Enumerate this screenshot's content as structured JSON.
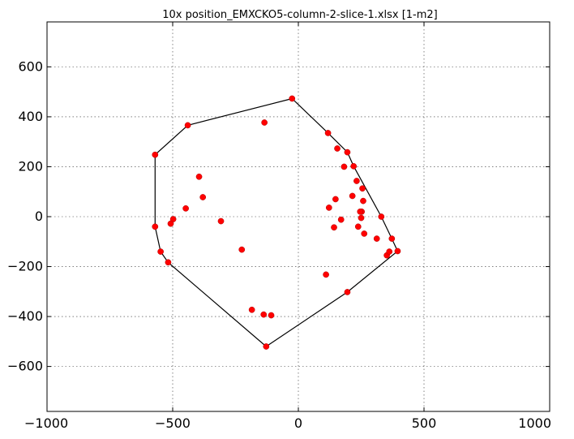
{
  "chart_data": {
    "type": "scatter",
    "title": "10x position_EMXCKO5-column-2-slice-1.xlsx   [1-m2]",
    "xlabel": "",
    "ylabel": "",
    "xlim": [
      -1000,
      1000
    ],
    "ylim": [
      -780,
      780
    ],
    "grid": true,
    "x_ticks": [
      -1000,
      -500,
      0,
      500,
      1000
    ],
    "y_ticks": [
      -600,
      -400,
      -200,
      0,
      200,
      400,
      600
    ],
    "x_tick_labels": [
      "−1000",
      "−500",
      "0",
      "500",
      "1000"
    ],
    "y_tick_labels": [
      "−600",
      "−400",
      "−200",
      "0",
      "200",
      "400",
      "600"
    ],
    "points": [
      [
        -25,
        473
      ],
      [
        -440,
        366
      ],
      [
        -570,
        248
      ],
      [
        -570,
        -40
      ],
      [
        -548,
        -140
      ],
      [
        -518,
        -183
      ],
      [
        -128,
        -520
      ],
      [
        195,
        -302
      ],
      [
        395,
        -138
      ],
      [
        372,
        -88
      ],
      [
        330,
        0
      ],
      [
        220,
        202
      ],
      [
        195,
        258
      ],
      [
        118,
        335
      ],
      [
        -135,
        377
      ],
      [
        -395,
        160
      ],
      [
        -380,
        78
      ],
      [
        -448,
        33
      ],
      [
        -498,
        -10
      ],
      [
        -508,
        -28
      ],
      [
        -308,
        -18
      ],
      [
        -225,
        -132
      ],
      [
        -185,
        -373
      ],
      [
        -138,
        -392
      ],
      [
        -108,
        -395
      ],
      [
        110,
        -232
      ],
      [
        352,
        -155
      ],
      [
        362,
        -140
      ],
      [
        312,
        -88
      ],
      [
        262,
        -68
      ],
      [
        238,
        -40
      ],
      [
        250,
        -5
      ],
      [
        252,
        20
      ],
      [
        246,
        20
      ],
      [
        258,
        63
      ],
      [
        255,
        113
      ],
      [
        232,
        143
      ],
      [
        182,
        200
      ],
      [
        155,
        273
      ],
      [
        148,
        70
      ],
      [
        215,
        83
      ],
      [
        122,
        36
      ],
      [
        170,
        -12
      ],
      [
        142,
        -43
      ]
    ],
    "hull": [
      [
        -25,
        473
      ],
      [
        118,
        335
      ],
      [
        195,
        258
      ],
      [
        220,
        202
      ],
      [
        330,
        0
      ],
      [
        372,
        -88
      ],
      [
        395,
        -138
      ],
      [
        195,
        -302
      ],
      [
        -128,
        -520
      ],
      [
        -518,
        -183
      ],
      [
        -548,
        -140
      ],
      [
        -570,
        -40
      ],
      [
        -570,
        248
      ],
      [
        -440,
        366
      ],
      [
        -25,
        473
      ]
    ],
    "colors": {
      "points": "#ff0000",
      "hull": "#000000"
    }
  }
}
